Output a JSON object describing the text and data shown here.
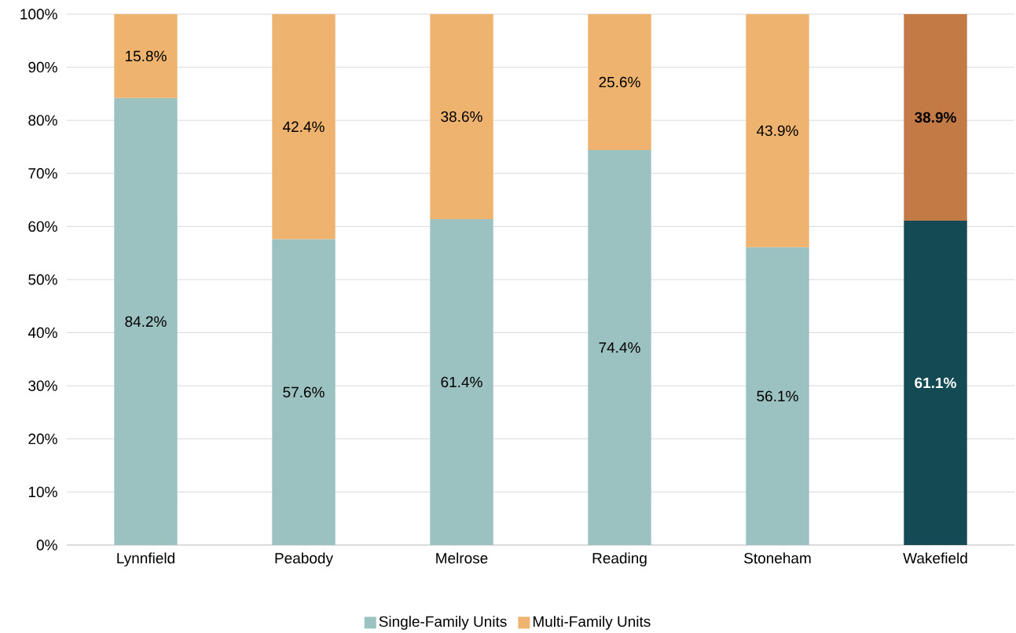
{
  "chart_data": {
    "type": "bar",
    "stacked": true,
    "categories": [
      "Lynnfield",
      "Peabody",
      "Melrose",
      "Reading",
      "Stoneham",
      "Wakefield"
    ],
    "series": [
      {
        "name": "Single-Family Units",
        "color": "#9bc2c1",
        "colors": [
          "#9bc2c1",
          "#9bc2c1",
          "#9bc2c1",
          "#9bc2c1",
          "#9bc2c1",
          "#134a54"
        ],
        "values": [
          84.2,
          57.6,
          61.4,
          74.4,
          56.1,
          61.1
        ],
        "value_labels": [
          "84.2%",
          "57.6%",
          "61.4%",
          "74.4%",
          "56.1%",
          "**61.1%**"
        ]
      },
      {
        "name": "Multi-Family Units",
        "color": "#efb370",
        "colors": [
          "#efb370",
          "#efb370",
          "#efb370",
          "#efb370",
          "#efb370",
          "#c47a45"
        ],
        "values": [
          15.8,
          42.4,
          38.6,
          25.6,
          43.9,
          38.9
        ],
        "value_labels": [
          "15.8%",
          "42.4%",
          "38.6%",
          "25.6%",
          "43.9%",
          "**38.9%**"
        ]
      }
    ],
    "ylim": [
      0,
      100
    ],
    "yticks": [
      {
        "value": 0,
        "label": "0%"
      },
      {
        "value": 10,
        "label": "10%"
      },
      {
        "value": 20,
        "label": "20%"
      },
      {
        "value": 30,
        "label": "30%"
      },
      {
        "value": 40,
        "label": "40%"
      },
      {
        "value": 50,
        "label": "50%"
      },
      {
        "value": 60,
        "label": "60%"
      },
      {
        "value": 70,
        "label": "70%"
      },
      {
        "value": 80,
        "label": "80%"
      },
      {
        "value": 90,
        "label": "90%"
      },
      {
        "value": 100,
        "label": "100%"
      }
    ],
    "grid": "y",
    "legend": "bottom"
  }
}
